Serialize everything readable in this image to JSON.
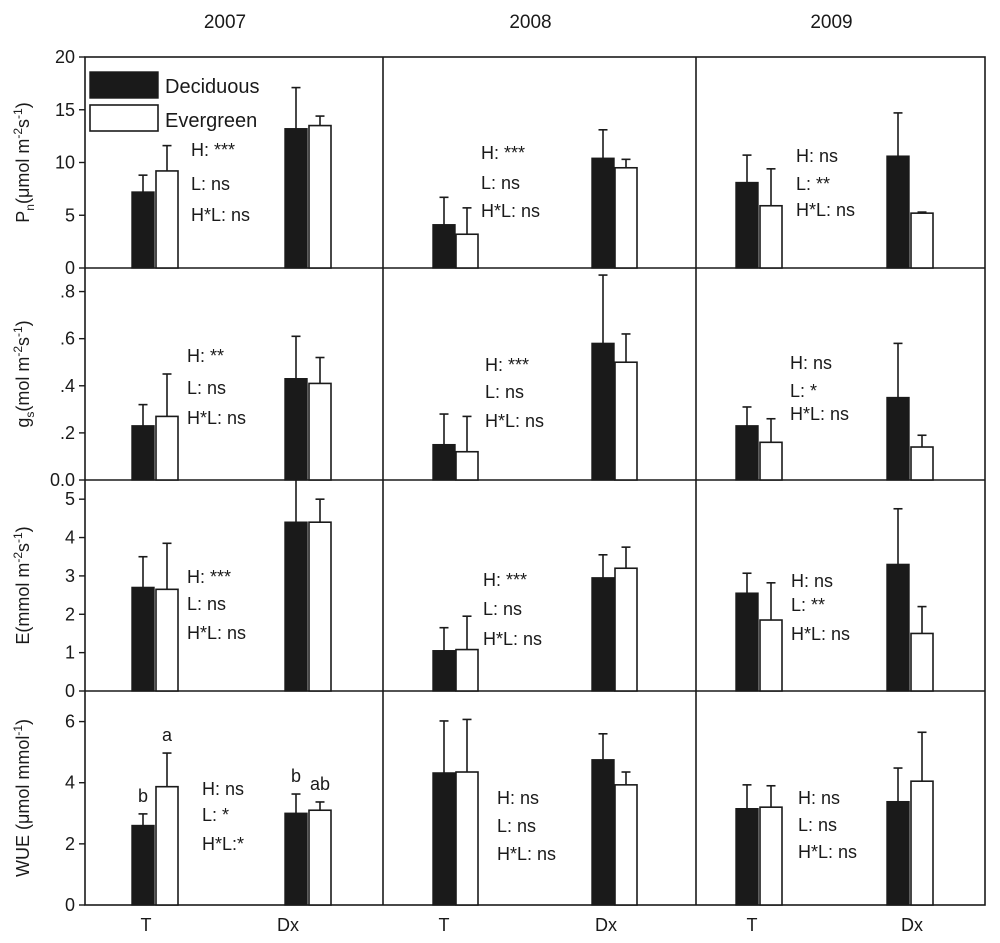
{
  "chart_data": {
    "type": "bar",
    "years": [
      "2007",
      "2008",
      "2009"
    ],
    "categories": [
      "T",
      "Dx"
    ],
    "legend": {
      "placement": "top-left",
      "entries": [
        "Deciduous",
        "Evergreen"
      ]
    },
    "colors": {
      "deciduous": "#1a1a1a",
      "evergreen": "#ffffff"
    },
    "rows": [
      {
        "id": "pn",
        "ylabel": {
          "main": "P",
          "sub": "n",
          "rest1": "(μmol m",
          "sup1": "-2",
          "mid": "s",
          "sup2": "-1",
          "end": ")"
        },
        "ylim": [
          0,
          20
        ],
        "ticks": [
          "0",
          "5",
          "10",
          "15",
          "20"
        ],
        "tick_values": [
          0,
          5,
          10,
          15,
          20
        ],
        "panels": [
          {
            "series": [
              {
                "name": "Deciduous",
                "values": [
                  7.2,
                  13.2
                ],
                "errors": [
                  1.6,
                  3.9
                ]
              },
              {
                "name": "Evergreen",
                "values": [
                  9.2,
                  13.5
                ],
                "errors": [
                  2.4,
                  0.9
                ]
              }
            ],
            "annotations": [
              "H: ***",
              "L: ns",
              "H*L: ns"
            ],
            "letters": []
          },
          {
            "series": [
              {
                "name": "Deciduous",
                "values": [
                  4.1,
                  10.4
                ],
                "errors": [
                  2.6,
                  2.7
                ]
              },
              {
                "name": "Evergreen",
                "values": [
                  3.2,
                  9.5
                ],
                "errors": [
                  2.5,
                  0.8
                ]
              }
            ],
            "annotations": [
              "H: ***",
              "L: ns",
              "H*L: ns"
            ],
            "letters": []
          },
          {
            "series": [
              {
                "name": "Deciduous",
                "values": [
                  8.1,
                  10.6
                ],
                "errors": [
                  2.6,
                  4.1
                ]
              },
              {
                "name": "Evergreen",
                "values": [
                  5.9,
                  5.2
                ],
                "errors": [
                  3.5,
                  0.1
                ]
              }
            ],
            "annotations": [
              "H: ns",
              "L: **",
              "H*L: ns"
            ],
            "letters": []
          }
        ]
      },
      {
        "id": "gs",
        "ylabel": {
          "main": "g",
          "sub": "s",
          "rest1": "(mol m",
          "sup1": "-2",
          "mid": "s",
          "sup2": "-1",
          "end": ")"
        },
        "ylim": [
          0,
          0.9
        ],
        "ticks": [
          "0.0",
          ".2",
          ".4",
          ".6",
          ".8"
        ],
        "tick_values": [
          0,
          0.2,
          0.4,
          0.6,
          0.8
        ],
        "panels": [
          {
            "series": [
              {
                "name": "Deciduous",
                "values": [
                  0.23,
                  0.43
                ],
                "errors": [
                  0.09,
                  0.18
                ]
              },
              {
                "name": "Evergreen",
                "values": [
                  0.27,
                  0.41
                ],
                "errors": [
                  0.18,
                  0.11
                ]
              }
            ],
            "annotations": [
              "H: **",
              "L: ns",
              "H*L: ns"
            ],
            "letters": []
          },
          {
            "series": [
              {
                "name": "Deciduous",
                "values": [
                  0.15,
                  0.58
                ],
                "errors": [
                  0.13,
                  0.29
                ]
              },
              {
                "name": "Evergreen",
                "values": [
                  0.12,
                  0.5
                ],
                "errors": [
                  0.15,
                  0.12
                ]
              }
            ],
            "annotations": [
              "H: ***",
              "L: ns",
              "H*L: ns"
            ],
            "letters": []
          },
          {
            "series": [
              {
                "name": "Deciduous",
                "values": [
                  0.23,
                  0.35
                ],
                "errors": [
                  0.08,
                  0.23
                ]
              },
              {
                "name": "Evergreen",
                "values": [
                  0.16,
                  0.14
                ],
                "errors": [
                  0.1,
                  0.05
                ]
              }
            ],
            "annotations": [
              "H: ns",
              "L: *",
              "H*L: ns"
            ],
            "letters": []
          }
        ]
      },
      {
        "id": "e",
        "ylabel": {
          "main": "E",
          "sub": "",
          "rest1": "(mmol m",
          "sup1": "-2",
          "mid": "s",
          "sup2": "-1",
          "end": ")"
        },
        "ylim": [
          0,
          5.5
        ],
        "ticks": [
          "0",
          "1",
          "2",
          "3",
          "4",
          "5"
        ],
        "tick_values": [
          0,
          1,
          2,
          3,
          4,
          5
        ],
        "panels": [
          {
            "series": [
              {
                "name": "Deciduous",
                "values": [
                  2.7,
                  4.4
                ],
                "errors": [
                  0.8,
                  1.2
                ]
              },
              {
                "name": "Evergreen",
                "values": [
                  2.65,
                  4.4
                ],
                "errors": [
                  1.2,
                  0.6
                ]
              }
            ],
            "annotations": [
              "H: ***",
              "L: ns",
              "H*L: ns"
            ],
            "letters": []
          },
          {
            "series": [
              {
                "name": "Deciduous",
                "values": [
                  1.05,
                  2.95
                ],
                "errors": [
                  0.6,
                  0.6
                ]
              },
              {
                "name": "Evergreen",
                "values": [
                  1.08,
                  3.2
                ],
                "errors": [
                  0.87,
                  0.55
                ]
              }
            ],
            "annotations": [
              "H: ***",
              "L: ns",
              "H*L: ns"
            ],
            "letters": []
          },
          {
            "series": [
              {
                "name": "Deciduous",
                "values": [
                  2.55,
                  3.3
                ],
                "errors": [
                  0.52,
                  1.45
                ]
              },
              {
                "name": "Evergreen",
                "values": [
                  1.85,
                  1.5
                ],
                "errors": [
                  0.97,
                  0.7
                ]
              }
            ],
            "annotations": [
              "H: ns",
              "L: **",
              "H*L: ns"
            ],
            "letters": []
          }
        ]
      },
      {
        "id": "wue",
        "ylabel": {
          "main": "WUE (μmol mmol",
          "sub": "",
          "rest1": "",
          "sup1": "-1",
          "mid": "",
          "sup2": "",
          "end": ")"
        },
        "ylim": [
          0,
          7
        ],
        "ticks": [
          "0",
          "2",
          "4",
          "6"
        ],
        "tick_values": [
          0,
          2,
          4,
          6
        ],
        "panels": [
          {
            "series": [
              {
                "name": "Deciduous",
                "values": [
                  2.6,
                  3.0
                ],
                "errors": [
                  0.38,
                  0.63
                ]
              },
              {
                "name": "Evergreen",
                "values": [
                  3.87,
                  3.1
                ],
                "errors": [
                  1.1,
                  0.27
                ]
              }
            ],
            "annotations": [
              "H: ns",
              "L: *",
              "H*L:*"
            ],
            "letters": [
              "b",
              "a",
              "b",
              "ab"
            ]
          },
          {
            "series": [
              {
                "name": "Deciduous",
                "values": [
                  4.32,
                  4.75
                ],
                "errors": [
                  1.7,
                  0.85
                ]
              },
              {
                "name": "Evergreen",
                "values": [
                  4.35,
                  3.93
                ],
                "errors": [
                  1.72,
                  0.42
                ]
              }
            ],
            "annotations": [
              "H: ns",
              "L: ns",
              "H*L: ns"
            ],
            "letters": []
          },
          {
            "series": [
              {
                "name": "Deciduous",
                "values": [
                  3.15,
                  3.38
                ],
                "errors": [
                  0.78,
                  1.1
                ]
              },
              {
                "name": "Evergreen",
                "values": [
                  3.2,
                  4.05
                ],
                "errors": [
                  0.7,
                  1.6
                ]
              }
            ],
            "annotations": [
              "H: ns",
              "L: ns",
              "H*L: ns"
            ],
            "letters": []
          }
        ]
      }
    ]
  }
}
